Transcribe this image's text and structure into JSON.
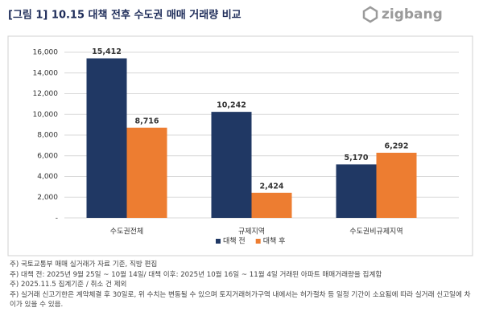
{
  "brand": "zigbang",
  "chart_data": {
    "type": "bar",
    "title": "[그림 1] 10.15 대책 전후 수도권 매매 거래량 비교",
    "categories": [
      "수도권전체",
      "규제지역",
      "수도권비규제지역"
    ],
    "series": [
      {
        "name": "대책 전",
        "color": "#203864",
        "values": [
          15412,
          10242,
          5170
        ],
        "value_labels": [
          "15,412",
          "10,242",
          "5,170"
        ]
      },
      {
        "name": "대책 후",
        "color": "#ed7d31",
        "values": [
          8716,
          2424,
          6292
        ],
        "value_labels": [
          "8,716",
          "2,424",
          "6,292"
        ]
      }
    ],
    "ylim": [
      0,
      16000
    ],
    "yticks": [
      {
        "value": 0,
        "label": "-"
      },
      {
        "value": 2000,
        "label": "2,000"
      },
      {
        "value": 4000,
        "label": "4,000"
      },
      {
        "value": 6000,
        "label": "6,000"
      },
      {
        "value": 8000,
        "label": "8,000"
      },
      {
        "value": 10000,
        "label": "10,000"
      },
      {
        "value": 12000,
        "label": "12,000"
      },
      {
        "value": 14000,
        "label": "14,000"
      },
      {
        "value": 16000,
        "label": "16,000"
      }
    ],
    "grid": true,
    "legend": "bottom"
  },
  "notes": [
    "주) 국토교통부 매매 실거래가 자료 기준, 직방 편집",
    "주) 대책 전: 2025년 9월 25일 ~ 10월 14일/ 대책 이후: 2025년 10월 16일 ~ 11월 4일 거래된 아파트 매매거래량을 집계함",
    "주) 2025.11.5 집계기준 / 취소 건 제외",
    "주) 실거래 신고기한은 계약체결 후 30일로, 위 수치는 변동될 수 있으며 토지거래허가구역 내에서는 허가절차 등 일정 기간이 소요됨에 따라 실거래 신고일에 차이가 있을 수 있음."
  ]
}
